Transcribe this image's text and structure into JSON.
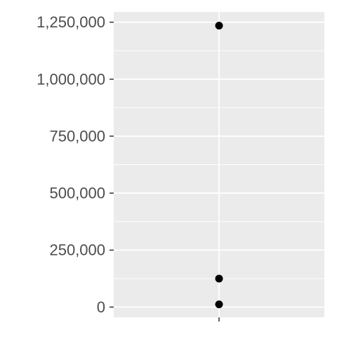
{
  "chart_data": {
    "type": "scatter",
    "title": "",
    "xlabel": "",
    "ylabel": "",
    "x": [
      "",
      "",
      ""
    ],
    "y": [
      1235000,
      125000,
      12000
    ],
    "ylim": [
      -45000,
      1295000
    ],
    "yticks": [
      0,
      250000,
      500000,
      750000,
      1000000,
      1250000
    ],
    "ytick_labels": [
      "0",
      "250,000",
      "500,000",
      "750,000",
      "1,000,000",
      "1,250,000"
    ],
    "xtick_labels": [
      ""
    ],
    "grid": true,
    "legend": "none",
    "colors": {
      "panel": "#ebebeb",
      "grid_major": "#ffffff",
      "points": "#000000",
      "text": "#4d4d4d",
      "ticks": "#333333"
    }
  }
}
